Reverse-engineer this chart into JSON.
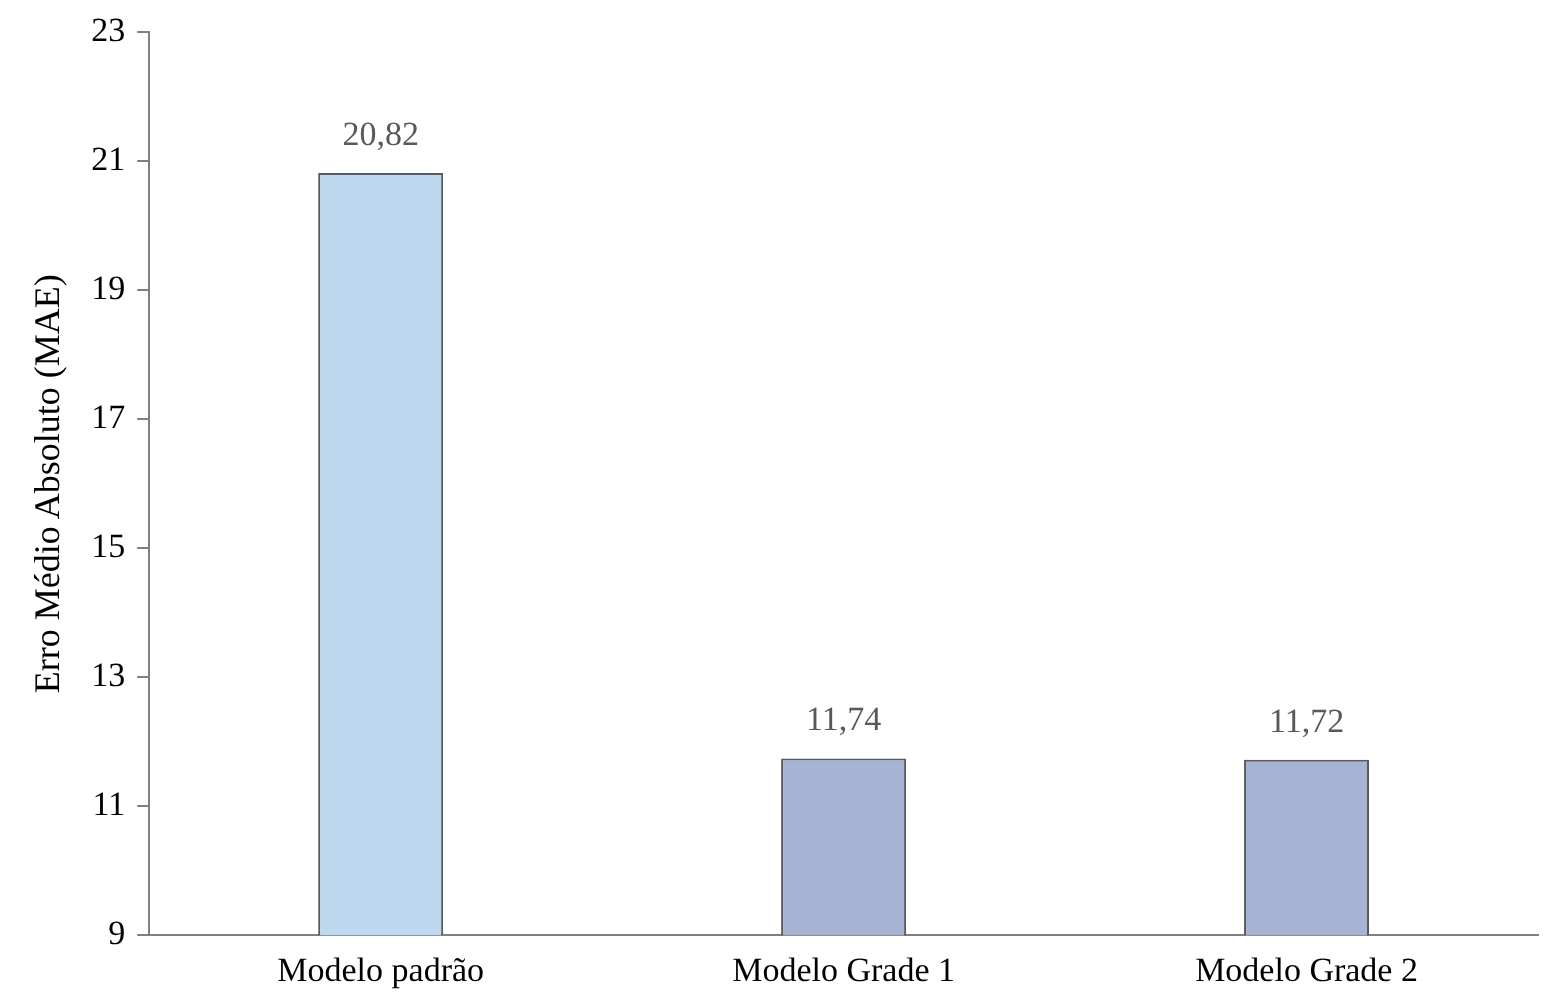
{
  "chart_data": {
    "type": "bar",
    "ylabel": "Erro Médio Absoluto (MAE)",
    "categories": [
      "Modelo padrão",
      "Modelo Grade 1",
      "Modelo Grade 2"
    ],
    "values": [
      20.82,
      11.74,
      11.72
    ],
    "colors": [
      "#bdd7ee",
      "#a5b4d2",
      "#a5b4d2"
    ],
    "value_labels": [
      "20,82",
      "11,74",
      "11,72"
    ],
    "ylim": [
      9,
      23
    ],
    "yticks": [
      9,
      11,
      13,
      15,
      17,
      19,
      21,
      23
    ],
    "grid": false,
    "legend": false
  }
}
